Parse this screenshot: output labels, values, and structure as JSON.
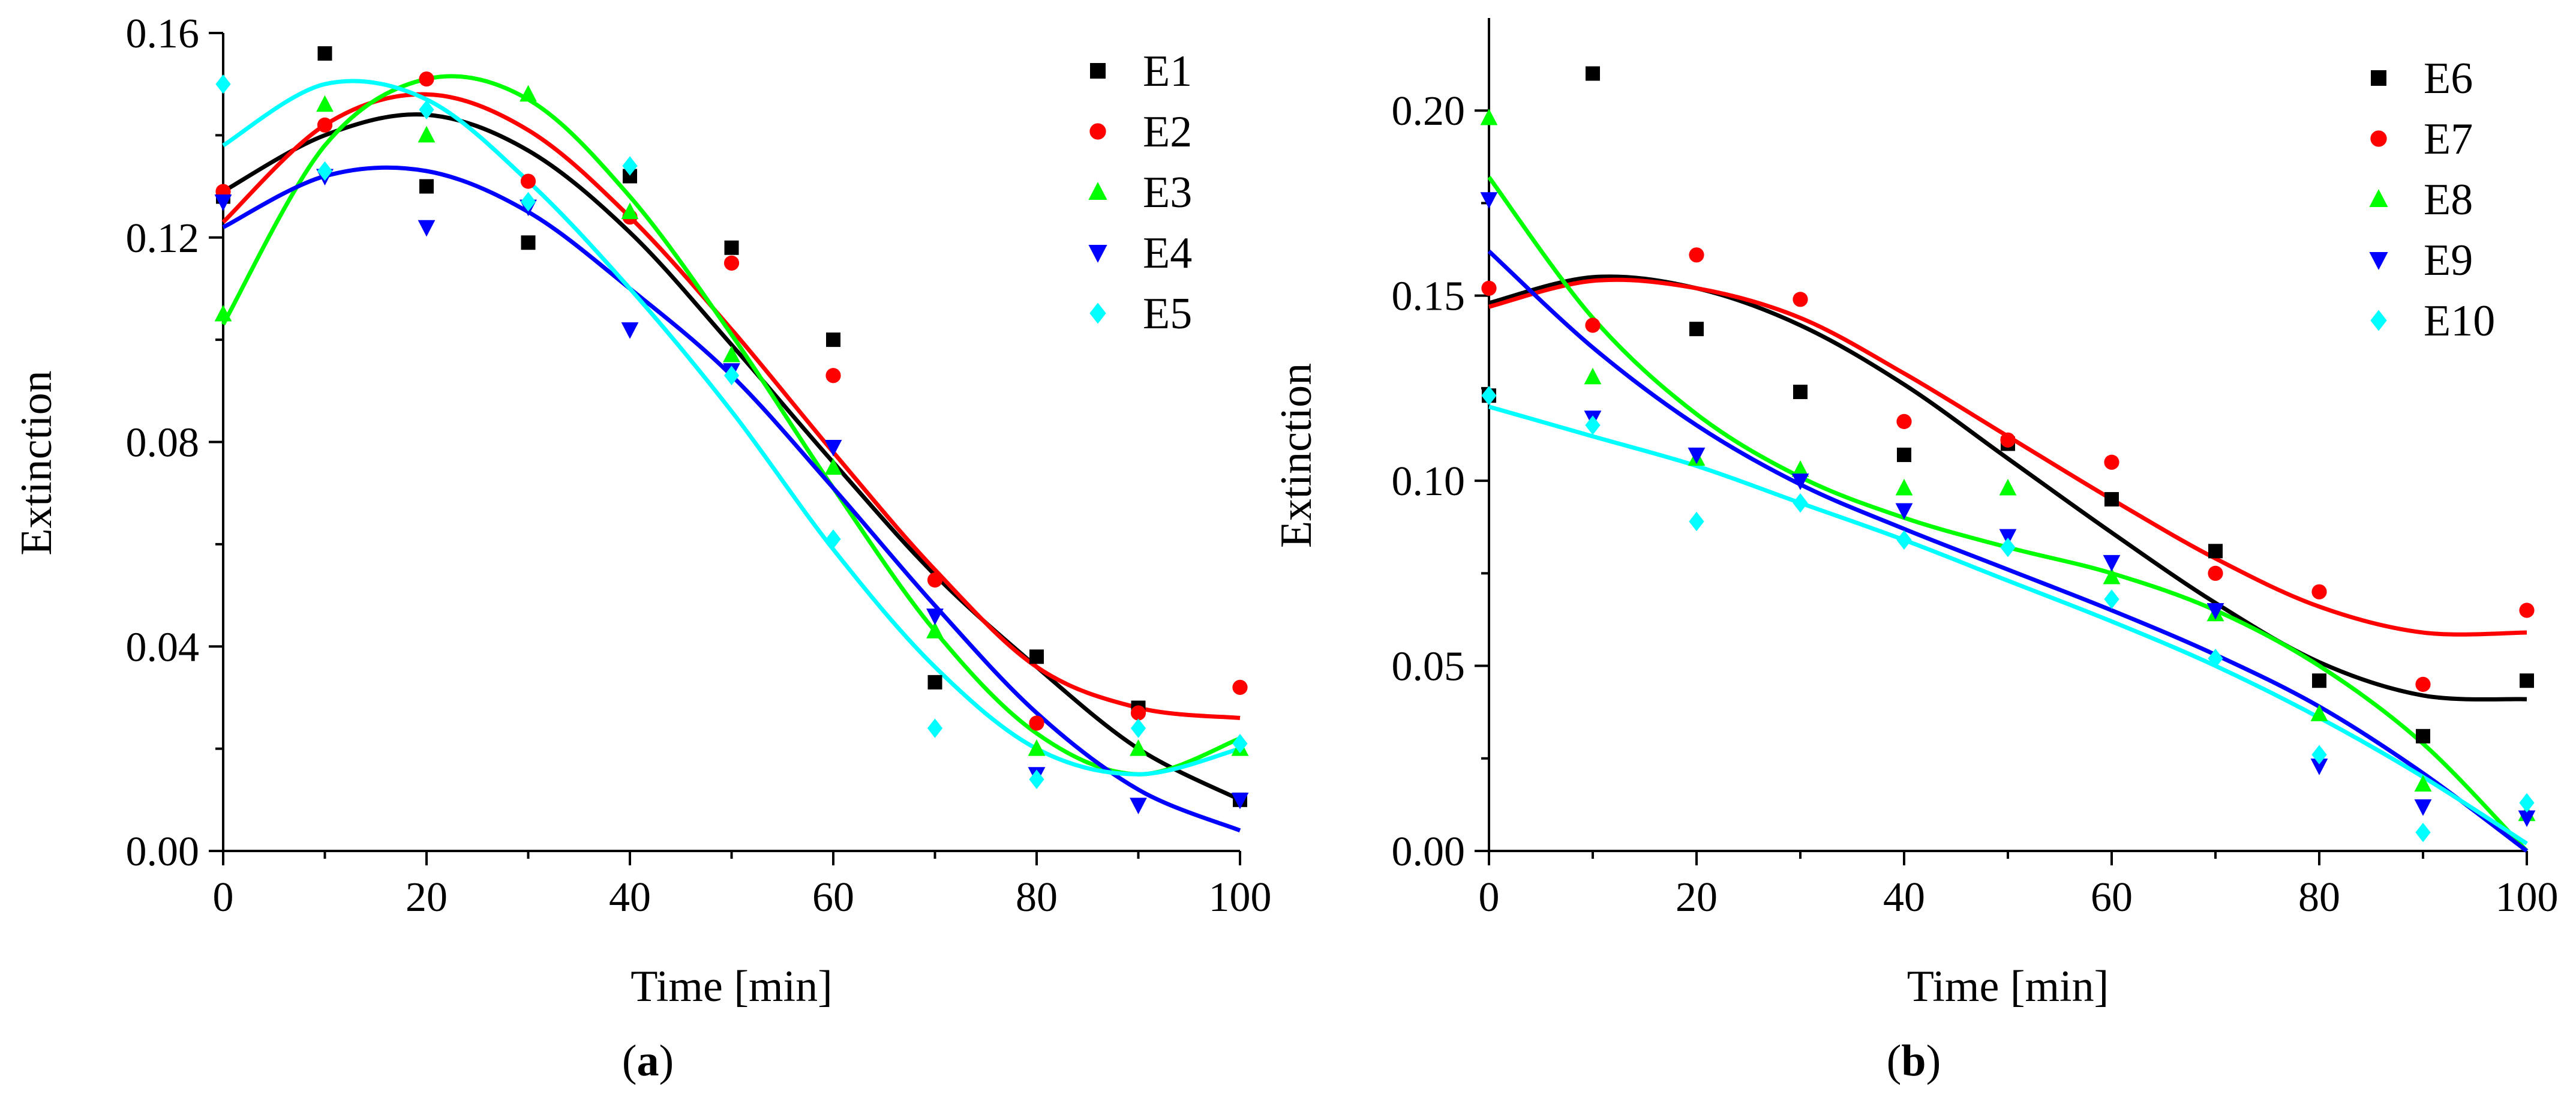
{
  "chart_data": [
    {
      "type": "scatter",
      "panel_label": "a",
      "xlabel": "Time [min]",
      "ylabel": "Extinction",
      "xlim": [
        0,
        100
      ],
      "ylim": [
        0,
        0.16
      ],
      "xticks": [
        0,
        20,
        40,
        60,
        80,
        100
      ],
      "yticks": [
        0.0,
        0.04,
        0.08,
        0.12,
        0.16
      ],
      "ytick_labels": [
        "0.00",
        "0.04",
        "0.08",
        "0.12",
        "0.16"
      ],
      "legend_position": "top-right",
      "x": [
        0,
        10,
        20,
        30,
        40,
        50,
        60,
        70,
        80,
        90,
        100
      ],
      "series": [
        {
          "name": "E1",
          "color": "#000000",
          "marker": "square",
          "values": [
            0.128,
            0.156,
            0.13,
            0.119,
            0.132,
            0.118,
            0.1,
            0.033,
            0.038,
            0.028,
            0.01
          ],
          "fit": [
            0.129,
            0.14,
            0.144,
            0.137,
            0.121,
            0.099,
            0.076,
            0.054,
            0.036,
            0.02,
            0.01
          ]
        },
        {
          "name": "E2",
          "color": "#ff0000",
          "marker": "circle",
          "values": [
            0.129,
            0.142,
            0.151,
            0.131,
            0.124,
            0.115,
            0.093,
            0.053,
            0.025,
            0.027,
            0.032
          ],
          "fit": [
            0.123,
            0.142,
            0.148,
            0.141,
            0.124,
            0.102,
            0.078,
            0.055,
            0.036,
            0.028,
            0.026
          ]
        },
        {
          "name": "E3",
          "color": "#00ff00",
          "marker": "triangle-up",
          "values": [
            0.105,
            0.146,
            0.14,
            0.148,
            0.125,
            0.097,
            0.075,
            0.043,
            0.02,
            0.02,
            0.02
          ],
          "fit": [
            0.103,
            0.138,
            0.151,
            0.147,
            0.128,
            0.101,
            0.071,
            0.043,
            0.023,
            0.015,
            0.022
          ]
        },
        {
          "name": "E4",
          "color": "#0000ff",
          "marker": "triangle-down",
          "values": [
            0.127,
            0.132,
            0.122,
            0.126,
            0.102,
            0.094,
            0.079,
            0.046,
            0.015,
            0.009,
            0.01
          ],
          "fit": [
            0.122,
            0.132,
            0.133,
            0.125,
            0.11,
            0.093,
            0.071,
            0.048,
            0.027,
            0.012,
            0.004
          ]
        },
        {
          "name": "E5",
          "color": "#00ffff",
          "marker": "diamond",
          "values": [
            0.15,
            0.133,
            0.145,
            0.127,
            0.134,
            0.093,
            0.061,
            0.024,
            0.014,
            0.024,
            0.021
          ],
          "fit": [
            0.138,
            0.15,
            0.147,
            0.131,
            0.11,
            0.086,
            0.059,
            0.036,
            0.02,
            0.015,
            0.02
          ]
        }
      ]
    },
    {
      "type": "scatter",
      "panel_label": "b",
      "xlabel": "Time [min]",
      "ylabel": "Extinction",
      "xlim": [
        0,
        100
      ],
      "ylim": [
        0,
        0.225
      ],
      "xticks": [
        0,
        20,
        40,
        60,
        80,
        100
      ],
      "yticks": [
        0.0,
        0.05,
        0.1,
        0.15,
        0.2
      ],
      "ytick_labels": [
        "0.00",
        "0.05",
        "0.10",
        "0.15",
        "0.20"
      ],
      "legend_position": "top-right",
      "x": [
        0,
        10,
        20,
        30,
        40,
        50,
        60,
        70,
        80,
        90,
        100
      ],
      "series": [
        {
          "name": "E6",
          "color": "#000000",
          "marker": "square",
          "values": [
            0.123,
            0.21,
            0.141,
            0.124,
            0.107,
            0.11,
            0.095,
            0.081,
            0.046,
            0.031,
            0.046
          ],
          "fit": [
            0.148,
            0.155,
            0.152,
            0.142,
            0.126,
            0.106,
            0.086,
            0.067,
            0.051,
            0.042,
            0.041
          ]
        },
        {
          "name": "E7",
          "color": "#ff0000",
          "marker": "circle",
          "values": [
            0.152,
            0.142,
            0.161,
            0.149,
            0.116,
            0.111,
            0.105,
            0.075,
            0.07,
            0.045,
            0.065
          ],
          "fit": [
            0.147,
            0.154,
            0.152,
            0.144,
            0.129,
            0.112,
            0.095,
            0.079,
            0.066,
            0.059,
            0.059
          ]
        },
        {
          "name": "E8",
          "color": "#00ff00",
          "marker": "triangle-up",
          "values": [
            0.198,
            0.128,
            0.106,
            0.103,
            0.098,
            0.098,
            0.074,
            0.064,
            0.037,
            0.018,
            0.01
          ],
          "fit": [
            0.182,
            0.144,
            0.118,
            0.101,
            0.09,
            0.082,
            0.075,
            0.065,
            0.05,
            0.029,
            0.0
          ]
        },
        {
          "name": "E9",
          "color": "#0000ff",
          "marker": "triangle-down",
          "values": [
            0.176,
            0.117,
            0.107,
            0.1,
            0.092,
            0.085,
            0.078,
            0.065,
            0.023,
            0.012,
            0.009
          ],
          "fit": [
            0.162,
            0.136,
            0.115,
            0.099,
            0.087,
            0.076,
            0.065,
            0.053,
            0.039,
            0.021,
            0.0
          ]
        },
        {
          "name": "E10",
          "color": "#00ffff",
          "marker": "diamond",
          "values": [
            0.123,
            0.115,
            0.089,
            0.094,
            0.084,
            0.082,
            0.068,
            0.052,
            0.026,
            0.005,
            0.013
          ],
          "fit": [
            0.12,
            0.112,
            0.104,
            0.094,
            0.084,
            0.073,
            0.062,
            0.05,
            0.036,
            0.02,
            0.002
          ]
        }
      ]
    }
  ]
}
